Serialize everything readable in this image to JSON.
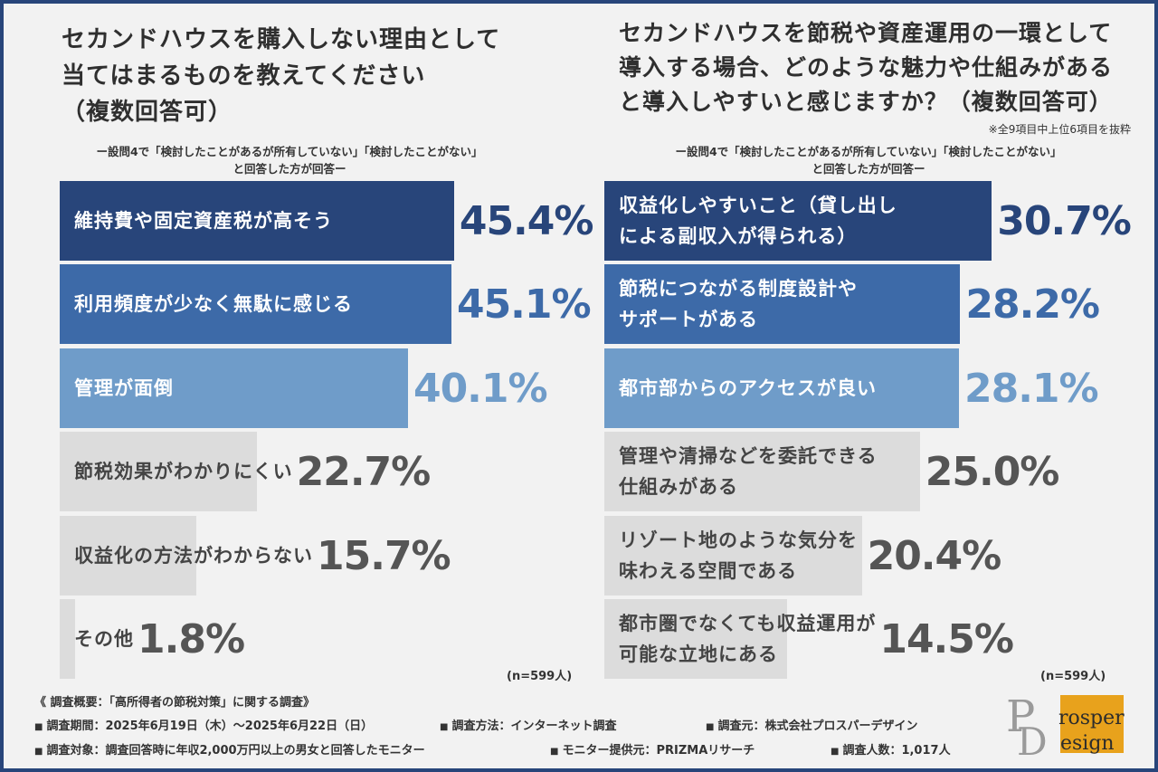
{
  "colors": {
    "dark": "#28457a",
    "mid": "#3d6aa8",
    "light": "#6f9cc9",
    "gray": "#dcdcdc",
    "value_dark": "#28457a",
    "value_mid": "#3d6aa8",
    "value_light": "#6f9cc9",
    "value_gray": "#555555",
    "logo_gold": "#e8a21c"
  },
  "left": {
    "title": "セカンドハウスを購入しない理由として\n当てはまるものを教えてください\n（複数回答可）",
    "subtitle": "ー設問4で「検討したことがあるが所有していない」「検討したことがない」\nと回答した方が回答ー",
    "n": "(n=599人)"
  },
  "right": {
    "title": "セカンドハウスを節税や資産運用の一環として\n導入する場合、どのような魅力や仕組みがある\nと導入しやすいと感じますか？（複数回答可）",
    "note": "※全9項目中上位6項目を抜粋",
    "subtitle": "ー設問4で「検討したことがあるが所有していない」「検討したことがない」\nと回答した方が回答ー",
    "n": "(n=599人)"
  },
  "chart_data": [
    {
      "type": "bar",
      "orientation": "horizontal",
      "title": "セカンドハウスを購入しない理由として当てはまるものを教えてください（複数回答可）",
      "categories": [
        "維持費や固定資産税が高そう",
        "利用頻度が少なく無駄に感じる",
        "管理が面倒",
        "節税効果がわかりにくい",
        "収益化の方法がわからない",
        "その他"
      ],
      "values": [
        45.4,
        45.1,
        40.1,
        22.7,
        15.7,
        1.8
      ],
      "value_labels": [
        "45.4%",
        "45.1%",
        "40.1%",
        "22.7%",
        "15.7%",
        "1.8%"
      ],
      "tiers": [
        "dark",
        "mid",
        "light",
        "gray",
        "gray",
        "gray"
      ],
      "unit": "%"
    },
    {
      "type": "bar",
      "orientation": "horizontal",
      "title": "セカンドハウスを節税や資産運用の一環として導入する場合、どのような魅力や仕組みがあると導入しやすいと感じますか？（複数回答可）",
      "categories": [
        "収益化しやすいこと（貸し出し\nによる副収入が得られる）",
        "節税につながる制度設計や\nサポートがある",
        "都市部からのアクセスが良い",
        "管理や清掃などを委託できる\n仕組みがある",
        "リゾート地のような気分を\n味わえる空間である",
        "都市圏でなくても収益運用が\n可能な立地にある"
      ],
      "values": [
        30.7,
        28.2,
        28.1,
        25.0,
        20.4,
        14.5
      ],
      "value_labels": [
        "30.7%",
        "28.2%",
        "28.1%",
        "25.0%",
        "20.4%",
        "14.5%"
      ],
      "tiers": [
        "dark",
        "mid",
        "light",
        "gray",
        "gray",
        "gray"
      ],
      "unit": "%"
    }
  ],
  "footer": {
    "heading": "《 調査概要：「高所得者の節税対策」に関する調査》",
    "row1": [
      "調査期間：2025年6月19日（木）～2025年6月22日（日）",
      "調査方法：インターネット調査",
      "調査元：株式会社プロスパーデザイン"
    ],
    "row2": [
      "調査対象：調査回答時に年収2,000万円以上の男女と回答したモニター",
      "モニター提供元：PRIZMAリサーチ",
      "調査人数：1,017人"
    ]
  },
  "logo": {
    "letter1": "P",
    "word1": "rosper",
    "letter2": "D",
    "word2": "esign"
  }
}
